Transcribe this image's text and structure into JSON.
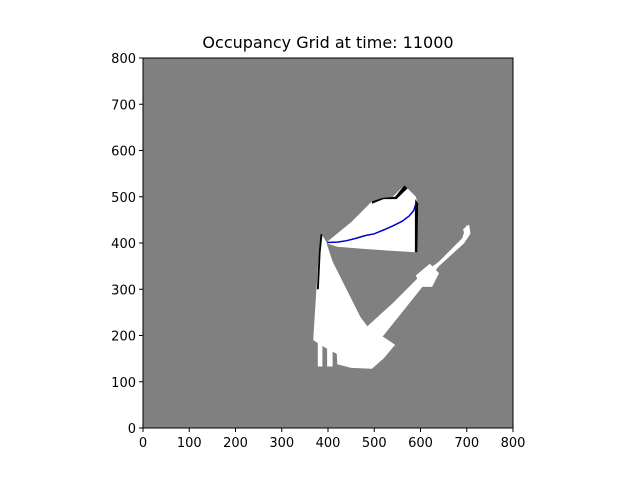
{
  "chart_data": {
    "type": "heatmap",
    "title": "Occupancy Grid at time: 11000",
    "xlabel": "",
    "ylabel": "",
    "xlim": [
      0,
      800
    ],
    "ylim": [
      0,
      800
    ],
    "x_ticks": [
      "0",
      "100",
      "200",
      "300",
      "400",
      "500",
      "600",
      "700",
      "800"
    ],
    "y_ticks": [
      "0",
      "100",
      "200",
      "300",
      "400",
      "500",
      "600",
      "700",
      "800"
    ],
    "grid": false,
    "background_color": "#808080",
    "free_color": "#ffffff",
    "occupied_color": "#000000",
    "path_color": "#0000cc",
    "free_regions": [
      {
        "name": "upper-wedge",
        "points": [
          [
            395,
            400
          ],
          [
            450,
            445
          ],
          [
            495,
            490
          ],
          [
            540,
            500
          ],
          [
            565,
            525
          ],
          [
            590,
            500
          ],
          [
            595,
            480
          ],
          [
            590,
            380
          ],
          [
            540,
            383
          ],
          [
            480,
            387
          ],
          [
            420,
            392
          ]
        ]
      },
      {
        "name": "left-triangle",
        "points": [
          [
            368,
            190
          ],
          [
            375,
            300
          ],
          [
            380,
            380
          ],
          [
            385,
            420
          ],
          [
            395,
            405
          ],
          [
            410,
            360
          ],
          [
            440,
            300
          ],
          [
            470,
            240
          ],
          [
            500,
            200
          ],
          [
            480,
            160
          ],
          [
            440,
            150
          ],
          [
            400,
            170
          ]
        ]
      },
      {
        "name": "left-pillar-a",
        "points": [
          [
            378,
            188
          ],
          [
            388,
            188
          ],
          [
            388,
            133
          ],
          [
            378,
            133
          ]
        ]
      },
      {
        "name": "left-pillar-b",
        "points": [
          [
            398,
            185
          ],
          [
            410,
            185
          ],
          [
            410,
            133
          ],
          [
            398,
            133
          ]
        ]
      },
      {
        "name": "bottom-block",
        "points": [
          [
            418,
            180
          ],
          [
            460,
            200
          ],
          [
            500,
            210
          ],
          [
            545,
            180
          ],
          [
            520,
            150
          ],
          [
            495,
            128
          ],
          [
            450,
            130
          ],
          [
            420,
            138
          ]
        ]
      },
      {
        "name": "diagonal-corridor",
        "points": [
          [
            472,
            208
          ],
          [
            540,
            270
          ],
          [
            600,
            330
          ],
          [
            640,
            360
          ],
          [
            690,
            410
          ],
          [
            700,
            440
          ],
          [
            705,
            420
          ],
          [
            695,
            400
          ],
          [
            640,
            350
          ],
          [
            600,
            300
          ],
          [
            560,
            250
          ],
          [
            520,
            200
          ],
          [
            490,
            175
          ]
        ]
      },
      {
        "name": "corridor-block",
        "points": [
          [
            590,
            330
          ],
          [
            620,
            355
          ],
          [
            640,
            335
          ],
          [
            625,
            305
          ],
          [
            600,
            305
          ]
        ]
      },
      {
        "name": "far-end",
        "points": [
          [
            692,
            430
          ],
          [
            705,
            440
          ],
          [
            708,
            420
          ],
          [
            698,
            405
          ]
        ]
      }
    ],
    "occupied_regions": [
      {
        "name": "upper-edge",
        "points": [
          [
            495,
            490
          ],
          [
            520,
            498
          ],
          [
            545,
            500
          ],
          [
            565,
            525
          ],
          [
            572,
            518
          ],
          [
            548,
            495
          ],
          [
            520,
            495
          ],
          [
            495,
            485
          ]
        ]
      },
      {
        "name": "right-edge",
        "points": [
          [
            589,
            495
          ],
          [
            595,
            485
          ],
          [
            593,
            380
          ],
          [
            588,
            380
          ],
          [
            588,
            480
          ]
        ]
      },
      {
        "name": "left-edge",
        "points": [
          [
            376,
            300
          ],
          [
            380,
            380
          ],
          [
            384,
            420
          ],
          [
            388,
            418
          ],
          [
            384,
            380
          ],
          [
            380,
            300
          ]
        ]
      }
    ],
    "robot_path": {
      "x": [
        398,
        420,
        440,
        460,
        480,
        500,
        520,
        540,
        560,
        575,
        585,
        590
      ],
      "y": [
        401,
        402,
        405,
        410,
        416,
        420,
        428,
        437,
        447,
        458,
        470,
        485
      ]
    }
  }
}
